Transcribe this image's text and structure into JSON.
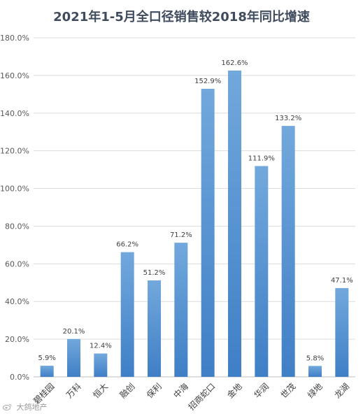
{
  "chart_data": {
    "type": "bar",
    "title": "2021年1-5月全口径销售较2018年同比增速",
    "categories": [
      "碧桂园",
      "万科",
      "恒大",
      "融创",
      "保利",
      "中海",
      "招商蛇口",
      "金地",
      "华润",
      "世茂",
      "绿地",
      "龙湖"
    ],
    "values": [
      5.9,
      20.1,
      12.4,
      66.2,
      51.2,
      71.2,
      152.9,
      162.6,
      111.9,
      133.2,
      5.8,
      47.1
    ],
    "value_labels": [
      "5.9%",
      "20.1%",
      "12.4%",
      "66.2%",
      "51.2%",
      "71.2%",
      "152.9%",
      "162.6%",
      "111.9%",
      "133.2%",
      "5.8%",
      "47.1%"
    ],
    "yticks": [
      "0.0%",
      "20.0%",
      "40.0%",
      "60.0%",
      "80.0%",
      "100.0%",
      "120.0%",
      "140.0%",
      "160.0%",
      "180.0%"
    ],
    "ylim": [
      0,
      180
    ],
    "grid": true,
    "legend": "none",
    "bar_color_top": "#72a8dc",
    "bar_color_bottom": "#3f7fc6"
  },
  "watermark": {
    "text": "大鸽地产",
    "icon": "weibo-icon"
  }
}
